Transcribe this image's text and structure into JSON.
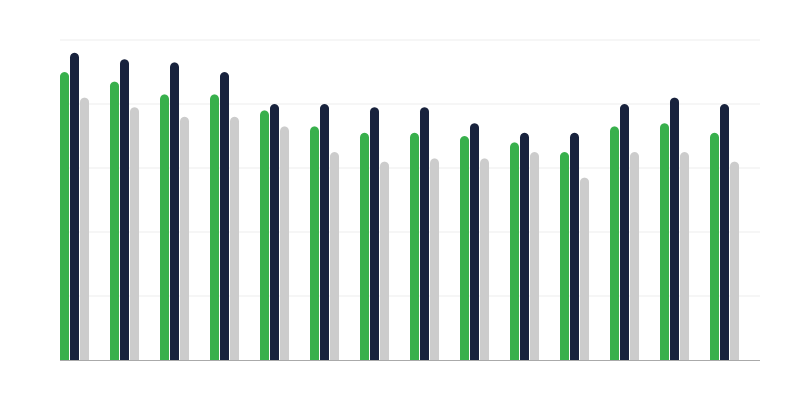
{
  "chart_data": {
    "type": "bar",
    "title": "",
    "xlabel": "",
    "ylabel": "",
    "ylim": [
      0,
      100
    ],
    "grid": true,
    "gridlines": [
      20,
      40,
      60,
      80,
      100
    ],
    "legend": "none",
    "series": [
      {
        "color": "#38b04c",
        "values": [
          90,
          87,
          83,
          83,
          78,
          73,
          71,
          71,
          70,
          68,
          65,
          73,
          74,
          71
        ]
      },
      {
        "color": "#18223d",
        "values": [
          96,
          94,
          93,
          90,
          80,
          80,
          79,
          79,
          74,
          71,
          71,
          80,
          82,
          80
        ]
      },
      {
        "color": "#cccccc",
        "values": [
          82,
          79,
          76,
          76,
          73,
          65,
          62,
          63,
          63,
          65,
          57,
          65,
          65,
          62
        ]
      }
    ],
    "colors": {
      "grid": "#eeeeee",
      "axis": "#aaaaaa"
    }
  }
}
